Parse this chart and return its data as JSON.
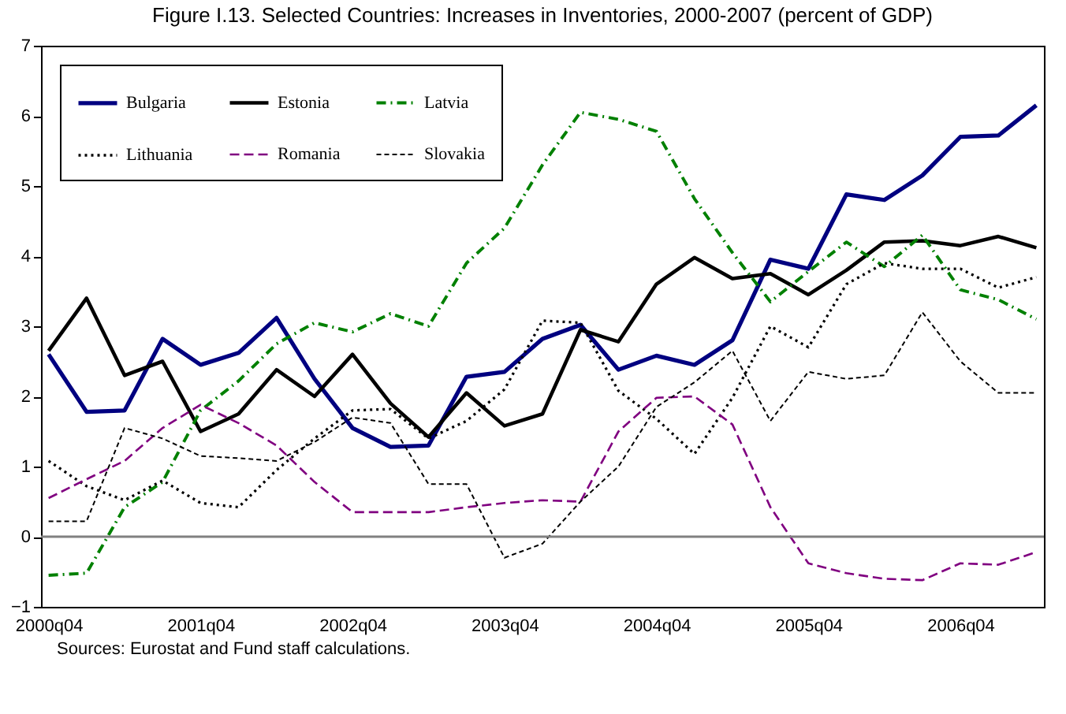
{
  "chart_data": {
    "type": "line",
    "title": "Figure I.13. Selected Countries: Increases in Inventories, 2000-2007 (percent of GDP)",
    "categories": [
      "2000q04",
      null,
      null,
      null,
      "2001q04",
      null,
      null,
      null,
      "2002q04",
      null,
      null,
      null,
      "2003q04",
      null,
      null,
      null,
      "2004q04",
      null,
      null,
      null,
      "2005q04",
      null,
      null,
      null,
      "2006q04",
      null,
      null
    ],
    "series": [
      {
        "name": "Bulgaria",
        "color": "#000080",
        "line_style": "solid",
        "values": [
          2.6,
          1.78,
          1.8,
          2.82,
          2.45,
          2.62,
          3.12,
          2.25,
          1.55,
          1.28,
          1.3,
          2.28,
          2.35,
          2.82,
          3.02,
          2.38,
          2.58,
          2.45,
          2.8,
          3.95,
          3.82,
          4.88,
          4.8,
          5.15,
          5.7,
          5.72,
          6.15
        ]
      },
      {
        "name": "Estonia",
        "color": "#000000",
        "line_style": "solid",
        "values": [
          2.65,
          3.4,
          2.3,
          2.5,
          1.5,
          1.75,
          2.38,
          2.0,
          2.6,
          1.9,
          1.42,
          2.05,
          1.58,
          1.75,
          2.95,
          2.78,
          3.6,
          3.98,
          3.68,
          3.75,
          3.45,
          3.8,
          4.2,
          4.22,
          4.15,
          4.28,
          4.12
        ]
      },
      {
        "name": "Latvia",
        "color": "#008000",
        "line_style": "dashed",
        "values": [
          -0.55,
          -0.52,
          0.42,
          0.78,
          1.8,
          2.22,
          2.75,
          3.05,
          2.92,
          3.18,
          3.0,
          3.9,
          4.4,
          5.3,
          6.05,
          5.95,
          5.78,
          4.82,
          4.05,
          3.35,
          3.78,
          4.2,
          3.85,
          4.3,
          3.52,
          3.38,
          3.1
        ]
      },
      {
        "name": "Lithuania",
        "color": "#000000",
        "line_style": "dotted",
        "values": [
          1.08,
          0.72,
          0.52,
          0.8,
          0.48,
          0.42,
          0.95,
          1.4,
          1.8,
          1.82,
          1.4,
          1.65,
          2.1,
          3.08,
          3.05,
          2.08,
          1.68,
          1.18,
          1.98,
          3.0,
          2.7,
          3.6,
          3.9,
          3.82,
          3.82,
          3.55,
          3.7
        ]
      },
      {
        "name": "Romania",
        "color": "#800080",
        "line_style": "dashed",
        "values": [
          0.55,
          0.82,
          1.08,
          1.55,
          1.88,
          1.62,
          1.3,
          0.78,
          0.35,
          0.35,
          0.35,
          0.42,
          0.48,
          0.52,
          0.5,
          1.5,
          1.98,
          2.0,
          1.6,
          0.42,
          -0.38,
          -0.52,
          -0.6,
          -0.62,
          -0.38,
          -0.4,
          -0.22
        ]
      },
      {
        "name": "Slovakia",
        "color": "#000000",
        "line_style": "dashed",
        "values": [
          0.22,
          0.22,
          1.55,
          1.4,
          1.15,
          1.12,
          1.08,
          1.35,
          1.7,
          1.62,
          0.75,
          0.75,
          -0.3,
          -0.1,
          0.5,
          1.0,
          1.85,
          2.2,
          2.65,
          1.65,
          2.35,
          2.25,
          2.3,
          3.2,
          2.5,
          2.05,
          2.05
        ]
      }
    ],
    "ylim": [
      -1,
      7
    ],
    "yticks": [
      -1,
      0,
      1,
      2,
      3,
      4,
      5,
      6,
      7
    ],
    "ref_lines": [
      {
        "axis": "y",
        "value": 0
      }
    ],
    "grid": false,
    "legend": "top left",
    "annotations": [
      "Sources:  Eurostat and Fund staff calculations."
    ]
  }
}
